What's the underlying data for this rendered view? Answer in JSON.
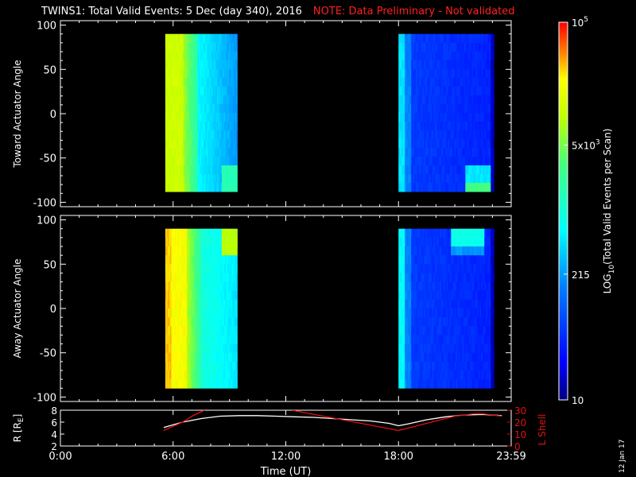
{
  "header": {
    "title": "TWINS1: Total Valid Events:  5 Dec (day 340), 2016",
    "note": "NOTE: Data Preliminary - Not validated"
  },
  "side_date": "12 Jan 17",
  "colors": {
    "background": "#000000",
    "axes": "#ffffff",
    "note": "#ff2020",
    "trajectory": "#ffffff",
    "lshell": "#e01010"
  },
  "chart_data": [
    {
      "type": "heatmap",
      "panel": "top",
      "ylabel": "Toward Actuator Angle",
      "ylim": [
        -105,
        105
      ],
      "yticks": [
        100,
        50,
        0,
        -50,
        -100
      ],
      "xlim_hours": [
        0,
        24
      ],
      "blocks": [
        {
          "x_start": "5:35",
          "x_end": "9:25",
          "y_range": [
            -88,
            90
          ],
          "profile": "yellow-green at start fading to cyan and blue, bright cyan patch near -80 at the end"
        },
        {
          "x_start": "18:00",
          "x_end": "23:05",
          "y_range": [
            -88,
            90
          ],
          "profile": "cyan at start fading to deep blue, cyan-green patch near -80 at 22:00-23:00"
        }
      ]
    },
    {
      "type": "heatmap",
      "panel": "middle",
      "ylabel": "Away Actuator Angle",
      "ylim": [
        -105,
        105
      ],
      "yticks": [
        100,
        50,
        0,
        -50,
        -100
      ],
      "xlim_hours": [
        0,
        24
      ],
      "blocks": [
        {
          "x_start": "5:35",
          "x_end": "9:25",
          "y_range": [
            -90,
            90
          ],
          "profile": "orange at start fading to yellow-green and cyan, yellow patch near +80 at the end"
        },
        {
          "x_start": "18:00",
          "x_end": "23:05",
          "y_range": [
            -90,
            90
          ],
          "profile": "cyan at start fading to deep blue, cyan patch near +80 at 21:00-22:30"
        }
      ]
    },
    {
      "type": "colorbar",
      "label": "LOG10(Total Valid Events per Scan)",
      "label_main": "LOG",
      "label_sub": "10",
      "label_rest": "(Total Valid Events per Scan)",
      "scale": "log",
      "range": [
        10,
        100000
      ],
      "tick_labels": [
        {
          "value": 100000,
          "base": "10",
          "exp": "5"
        },
        {
          "value": 5000,
          "base": "5x10",
          "exp": "3"
        },
        {
          "value": 215,
          "base": "215",
          "exp": ""
        },
        {
          "value": 10,
          "base": "10",
          "exp": ""
        }
      ]
    },
    {
      "type": "line",
      "panel": "bottom",
      "ylabel_left": "R [R",
      "ylabel_left_sub": "E",
      "ylabel_left_end": "]",
      "ylabel_right": "L Shell",
      "left_ylim": [
        2,
        8
      ],
      "left_yticks": [
        8,
        6,
        4,
        2
      ],
      "right_ylim": [
        0,
        30
      ],
      "right_yticks": [
        30,
        20,
        10,
        0
      ],
      "xlabel": "Time (UT)",
      "xticks": [
        "0:00",
        "6:00",
        "12:00",
        "18:00",
        "23:59"
      ],
      "xtick_hours": [
        0,
        6,
        12,
        18,
        24
      ],
      "series": [
        {
          "axis": "left",
          "x": [
            "5:30",
            "6:30",
            "7:30",
            "8:30",
            "9:30",
            "10:30",
            "11:30",
            "12:30",
            "13:30",
            "14:30",
            "15:30",
            "16:30",
            "17:30",
            "18:00",
            "18:30",
            "19:30",
            "20:30",
            "21:30",
            "22:30",
            "23:30"
          ],
          "y": [
            5.1,
            6.0,
            6.6,
            7.0,
            7.1,
            7.1,
            7.0,
            6.9,
            6.8,
            6.6,
            6.4,
            6.2,
            5.8,
            5.4,
            5.7,
            6.4,
            6.9,
            7.2,
            7.3,
            7.1
          ]
        },
        {
          "axis": "right",
          "x": [
            "5:30",
            "6:30",
            "7:00",
            "7:40",
            null,
            "12:20",
            "13:00",
            "14:00",
            "15:00",
            "16:00",
            "17:00",
            "18:00",
            "19:00",
            "20:00",
            "21:00",
            "22:00",
            "22:30",
            "23:00",
            "23:30"
          ],
          "y": [
            13,
            20,
            25,
            30,
            null,
            30,
            28,
            25,
            22,
            19,
            16,
            13,
            17,
            21,
            25,
            27,
            27,
            26,
            25
          ]
        }
      ]
    }
  ]
}
